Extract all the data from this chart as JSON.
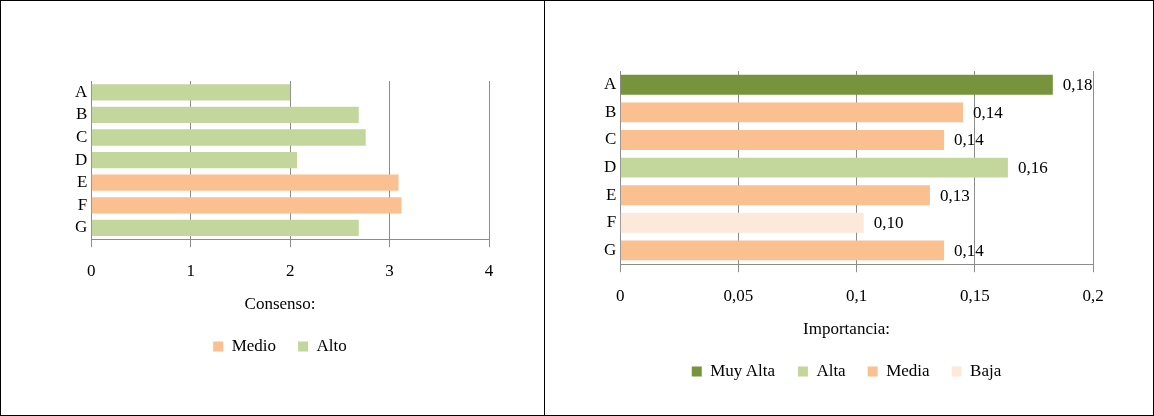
{
  "chart_data": [
    {
      "type": "bar",
      "orientation": "horizontal",
      "stacked": true,
      "categories": [
        "A",
        "B",
        "C",
        "D",
        "E",
        "F",
        "G"
      ],
      "legend_title": "Consenso:",
      "legend": "bottom",
      "grid": "x",
      "xlim": [
        0,
        4
      ],
      "xticks": [
        0,
        1,
        2,
        3,
        4
      ],
      "series": [
        {
          "name": "Medio",
          "color": "#fac090",
          "values": [
            null,
            null,
            null,
            null,
            3.09,
            3.12,
            null
          ]
        },
        {
          "name": "Alto",
          "color": "#c3d69b",
          "values": [
            2.0,
            2.69,
            2.76,
            2.07,
            null,
            null,
            2.69
          ]
        }
      ]
    },
    {
      "type": "bar",
      "orientation": "horizontal",
      "stacked": true,
      "categories": [
        "A",
        "B",
        "C",
        "D",
        "E",
        "F",
        "G"
      ],
      "legend_title": "Importancia:",
      "legend": "bottom",
      "grid": "x",
      "xlim": [
        0,
        0.2
      ],
      "xticks": [
        0,
        {
          "value": 0.05,
          "label": "0,05"
        },
        {
          "value": 0.1,
          "label": "0,1"
        },
        {
          "value": 0.15,
          "label": "0,15"
        },
        {
          "value": 0.2,
          "label": "0,2"
        }
      ],
      "series": [
        {
          "name": "Muy Alta",
          "color": "#77933c",
          "values": [
            0.183,
            null,
            null,
            null,
            null,
            null,
            null
          ],
          "value_labels": [
            "0,18",
            null,
            null,
            null,
            null,
            null,
            null
          ]
        },
        {
          "name": "Alta",
          "color": "#c3d69b",
          "values": [
            null,
            null,
            null,
            0.164,
            null,
            null,
            null
          ],
          "value_labels": [
            null,
            null,
            null,
            "0,16",
            null,
            null,
            null
          ]
        },
        {
          "name": "Media",
          "color": "#fac090",
          "values": [
            null,
            0.145,
            0.137,
            null,
            0.131,
            null,
            0.137
          ],
          "value_labels": [
            null,
            "0,14",
            "0,14",
            null,
            "0,13",
            null,
            "0,14"
          ]
        },
        {
          "name": "Baja",
          "color": "#fde9d9",
          "values": [
            null,
            null,
            null,
            null,
            null,
            0.103,
            null
          ],
          "value_labels": [
            null,
            null,
            null,
            null,
            null,
            "0,10",
            null
          ]
        }
      ]
    }
  ]
}
